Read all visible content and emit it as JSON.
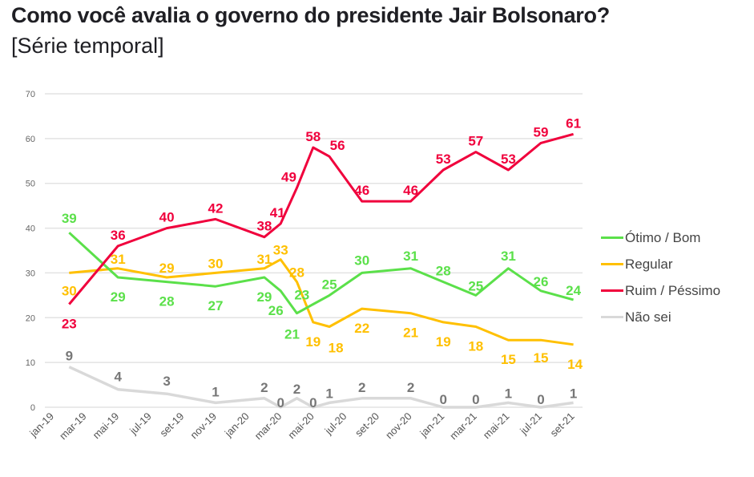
{
  "title": "Como você avalia o governo do presidente Jair Bolsonaro?",
  "subtitle": "[Série temporal]",
  "chart_data": {
    "type": "line",
    "title": "Como você avalia o governo do presidente Jair Bolsonaro?",
    "subtitle": "[Série temporal]",
    "xlabel": "",
    "ylabel": "",
    "ylim": [
      0,
      70
    ],
    "yticks": [
      0,
      10,
      20,
      30,
      40,
      50,
      60,
      70
    ],
    "grid": true,
    "legend_position": "right",
    "x_tick_labels": [
      "jan-19",
      "mar-19",
      "mai-19",
      "jul-19",
      "set-19",
      "nov-19",
      "jan-20",
      "mar-20",
      "mai-20",
      "jul-20",
      "set-20",
      "nov-20",
      "jan-21",
      "mar-21",
      "mai-21",
      "jul-21",
      "set-21"
    ],
    "x_month_index": [
      1,
      4,
      7,
      10,
      13,
      14,
      15,
      16,
      17,
      19,
      22,
      24,
      26,
      28,
      30,
      32
    ],
    "series": [
      {
        "name": "Ótimo / Bom",
        "color": "#5be04a",
        "values": [
          39,
          29,
          28,
          27,
          29,
          26,
          21,
          23,
          25,
          30,
          31,
          28,
          25,
          31,
          26,
          24
        ]
      },
      {
        "name": "Regular",
        "color": "#ffc000",
        "values": [
          30,
          31,
          29,
          30,
          31,
          33,
          28,
          19,
          18,
          22,
          21,
          19,
          18,
          15,
          15,
          14
        ]
      },
      {
        "name": "Ruim / Péssimo",
        "color": "#f0003c",
        "values": [
          23,
          36,
          40,
          42,
          38,
          41,
          49,
          58,
          56,
          46,
          46,
          53,
          57,
          53,
          59,
          61
        ]
      },
      {
        "name": "Não sei",
        "color": "#d9d9d9",
        "label_color": "#777777",
        "values": [
          9,
          4,
          3,
          1,
          2,
          0,
          2,
          0,
          1,
          2,
          2,
          0,
          0,
          1,
          0,
          1
        ]
      }
    ]
  }
}
